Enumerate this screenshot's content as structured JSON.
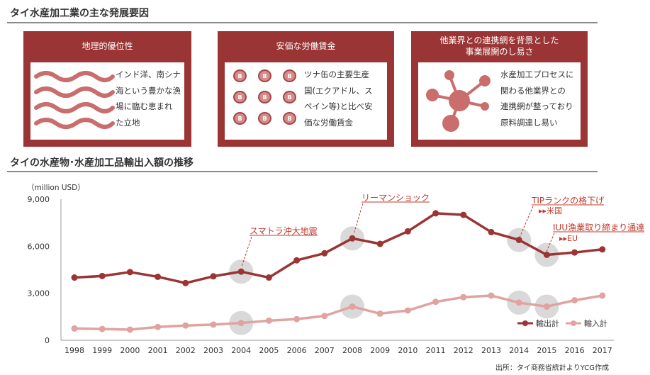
{
  "header": {
    "title": "タイ水産加工業の主な発展要因",
    "chart_section_title": "タイの水産物･水産加工品輸出入額の推移"
  },
  "factors": [
    {
      "title": "地理的優位性",
      "text": "インド洋、南シナ\n海という豊かな漁\n場に臨む恵まれ\nた立地",
      "icon": "waves-icon"
    },
    {
      "title": "安価な労働賃金",
      "text": "ツナ缶の主要生産\n国(エクアドル、ス\nペイン等)と比べ安\n価な労働賃金",
      "icon": "baht-coin-icon",
      "coin_label": "B"
    },
    {
      "title": "他業界との連携網を背景とした\n事業展開のし易さ",
      "text": "水産加工プロセスに\n関わる他業界との\n連携網が整っており\n原料調達し易い",
      "icon": "network-icon"
    }
  ],
  "colors": {
    "panel": "#9b3434",
    "export": "#9b3434",
    "import": "#e0a3a0",
    "highlight": "#d9d9d9",
    "annotation": "#c0392b"
  },
  "chart_data": {
    "type": "line",
    "unit_label": "（million USD）",
    "x": [
      "1998",
      "1999",
      "2000",
      "2001",
      "2002",
      "2003",
      "2004",
      "2005",
      "2006",
      "2007",
      "2008",
      "2009",
      "2010",
      "2011",
      "2012",
      "2013",
      "2014",
      "2015",
      "2016",
      "2017"
    ],
    "series": [
      {
        "name": "輸出計",
        "values": [
          4000,
          4100,
          4350,
          4050,
          3650,
          4080,
          4380,
          4000,
          5100,
          5550,
          6500,
          6150,
          6950,
          8100,
          8000,
          6900,
          6400,
          5450,
          5600,
          5800
        ]
      },
      {
        "name": "輸入計",
        "values": [
          750,
          720,
          680,
          850,
          940,
          1000,
          1100,
          1250,
          1350,
          1550,
          2150,
          1700,
          1900,
          2450,
          2750,
          2850,
          2400,
          2150,
          2550,
          2850
        ]
      }
    ],
    "ylim": [
      0,
      9000
    ],
    "yticks": [
      "0",
      "3,000",
      "6,000",
      "9,000"
    ],
    "grid": false,
    "legend": "bottom-right",
    "highlighted_years": [
      "2004",
      "2008",
      "2014",
      "2015"
    ],
    "annotations": [
      {
        "text": "スマトラ沖大地震",
        "year": "2004"
      },
      {
        "text": "リーマンショック",
        "year": "2008"
      },
      {
        "text": "TIPランクの格下げ",
        "subtext": "▸▸米国",
        "year": "2014"
      },
      {
        "text": "IUU漁業取り締まり通達",
        "subtext": "▸▸EU",
        "year": "2015"
      }
    ]
  },
  "source": "出所：タイ商務省統計よりYCG作成"
}
